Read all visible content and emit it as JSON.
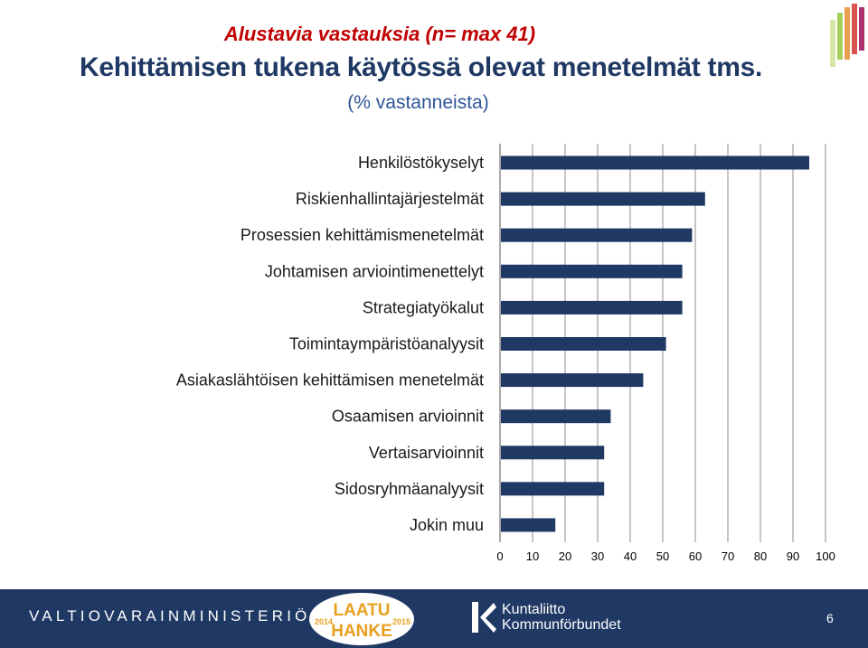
{
  "header": {
    "note": "Alustavia vastauksia (n= max 41)",
    "title": "Kehittämisen tukena käytössä olevat menetelmät tms.",
    "subtitle": "(% vastanneista)"
  },
  "chart_data": {
    "type": "bar",
    "orientation": "horizontal",
    "categories": [
      "Henkilöstökyselyt",
      "Riskienhallintajärjestelmät",
      "Prosessien kehittämismenetelmät",
      "Johtamisen arviointimenettelyt",
      "Strategiatyökalut",
      "Toimintaympäristöanalyysit",
      "Asiakaslähtöisen kehittämisen menetelmät",
      "Osaamisen arvioinnit",
      "Vertaisarvioinnit",
      "Sidosryhmäanalyysit",
      "Jokin muu"
    ],
    "values": [
      95,
      63,
      59,
      56,
      56,
      51,
      44,
      34,
      32,
      32,
      17
    ],
    "xlim": [
      0,
      100
    ],
    "xticks": [
      "0",
      "10",
      "20",
      "30",
      "40",
      "50",
      "60",
      "70",
      "80",
      "90",
      "100"
    ],
    "grid": "vertical",
    "bar_color": "#1f3864"
  },
  "footer": {
    "ministry": "VALTIOVARAINMINISTERIÖ",
    "laatu_line1": "LAATU",
    "laatu_line2": "HANKE",
    "laatu_year_left": "2014",
    "laatu_year_right": "2015",
    "kunta_line1": "Kuntaliitto",
    "kunta_line2": "Kommunförbundet",
    "page_number": "6"
  }
}
